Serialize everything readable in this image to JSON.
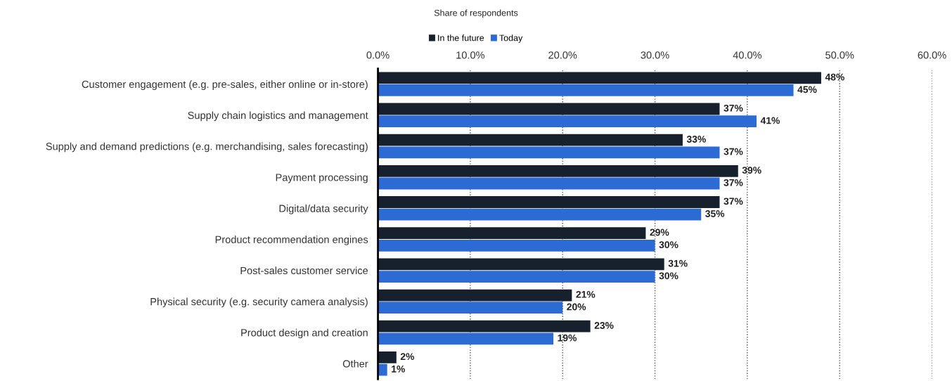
{
  "chart_data": {
    "type": "bar",
    "orientation": "horizontal",
    "xlabel": "Share of respondents",
    "categories": [
      "Customer engagement (e.g. pre-sales, either online or in-store)",
      "Supply chain logistics and management",
      "Supply and demand predictions (e.g. merchandising, sales forecasting)",
      "Payment processing",
      "Digital/data security",
      "Product recommendation engines",
      "Post-sales customer service",
      "Physical security (e.g. security camera analysis)",
      "Product design and creation",
      "Other"
    ],
    "series": [
      {
        "name": "In the future",
        "color": "#17212e",
        "values": [
          48,
          37,
          33,
          39,
          37,
          29,
          31,
          21,
          23,
          2
        ],
        "value_labels": [
          "48%",
          "37%",
          "33%",
          "39%",
          "37%",
          "29%",
          "31%",
          "21%",
          "23%",
          "2%"
        ]
      },
      {
        "name": "Today",
        "color": "#2d6bd4",
        "values": [
          45,
          41,
          37,
          37,
          35,
          30,
          30,
          20,
          19,
          1
        ],
        "value_labels": [
          "45%",
          "41%",
          "37%",
          "37%",
          "35%",
          "30%",
          "30%",
          "20%",
          "19%",
          "1%"
        ]
      }
    ],
    "xlim": [
      0,
      60
    ],
    "xticks": [
      {
        "value": 0,
        "label": "0.0%"
      },
      {
        "value": 10,
        "label": "10.0%"
      },
      {
        "value": 20,
        "label": "20.0%"
      },
      {
        "value": 30,
        "label": "30.0%"
      },
      {
        "value": 40,
        "label": "40.0%"
      },
      {
        "value": 50,
        "label": "50.0%"
      },
      {
        "value": 60,
        "label": "60.0%"
      }
    ],
    "grid": "x",
    "legend": "top"
  }
}
